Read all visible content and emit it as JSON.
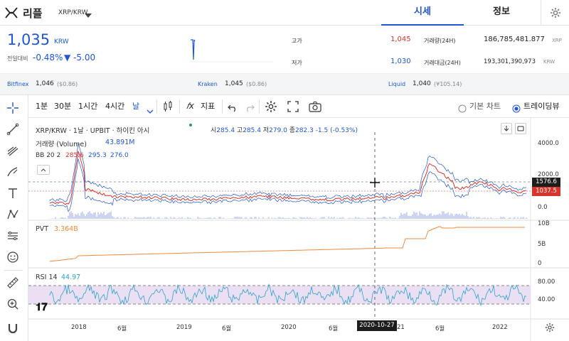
{
  "header": {
    "coin_name": "리플",
    "coin_symbol": "XRP/KRW",
    "tabs": [
      {
        "label": "시세",
        "active": true
      },
      {
        "label": "정보",
        "active": false
      }
    ]
  },
  "price": {
    "current": "1,035",
    "currency": "KRW",
    "change_label": "전일대비",
    "change_pct": "-0.48%",
    "change_abs": "▼ -5.00"
  },
  "stats": {
    "high_label": "고가",
    "high": "1,045",
    "low_label": "저가",
    "low": "1,030",
    "volume_label": "거래량(24H)",
    "volume": "186,785,481.877",
    "volume_unit": "XRP",
    "amount_label": "거래대금(24H)",
    "amount": "193,301,390,973",
    "amount_unit": "KRW"
  },
  "exchanges": [
    {
      "name": "Bitfinex",
      "price": "1,046",
      "sub": "($0.86)"
    },
    {
      "name": "Kraken",
      "price": "1,045",
      "sub": "($0.86)"
    },
    {
      "name": "Liquid",
      "price": "1,040",
      "sub": "(¥105.14)"
    }
  ],
  "toolbar": {
    "intervals": [
      "1분",
      "30분",
      "1시간",
      "4시간",
      "날"
    ],
    "indicator_label": "지표",
    "view_basic": "기본 차트",
    "view_trading": "트레이딩뷰"
  },
  "chart": {
    "legend_title": "XRP/KRW · 1날 · UPBIT · 하이킨 아시",
    "ohlc": {
      "o_label": "시",
      "o": "285.4",
      "h_label": "고",
      "h": "285.4",
      "l_label": "저",
      "l": "279.0",
      "c_label": "종",
      "c": "282.3",
      "chg": "-1.5 (-0.53%)"
    },
    "volume_label": "거래량 (Volume)",
    "volume_value": "43.891M",
    "bb_label": "BB 20 2",
    "bb_values": [
      "285.6",
      "295.3",
      "276.0"
    ],
    "price_axis": [
      "4000.0",
      "2000.0",
      "0.0"
    ],
    "price_tag_1": "1576.6",
    "price_tag_2": "1037.5",
    "pvt_label": "PVT",
    "pvt_value": "3.364B",
    "pvt_axis": [
      "10B",
      "5B",
      "0"
    ],
    "rsi_label": "RSI 14",
    "rsi_value": "44.97",
    "rsi_axis": [
      "80.00",
      "40.00"
    ],
    "time_axis": [
      "2018",
      "6월",
      "2019",
      "6월",
      "2020",
      "6월",
      "21",
      "6월",
      "2022"
    ],
    "crosshair_date": "2020-10-27",
    "colors": {
      "blue": "#1e56d6",
      "red": "#d9342b",
      "orange": "#f08a3a",
      "rsi": "#29a3cc"
    }
  }
}
